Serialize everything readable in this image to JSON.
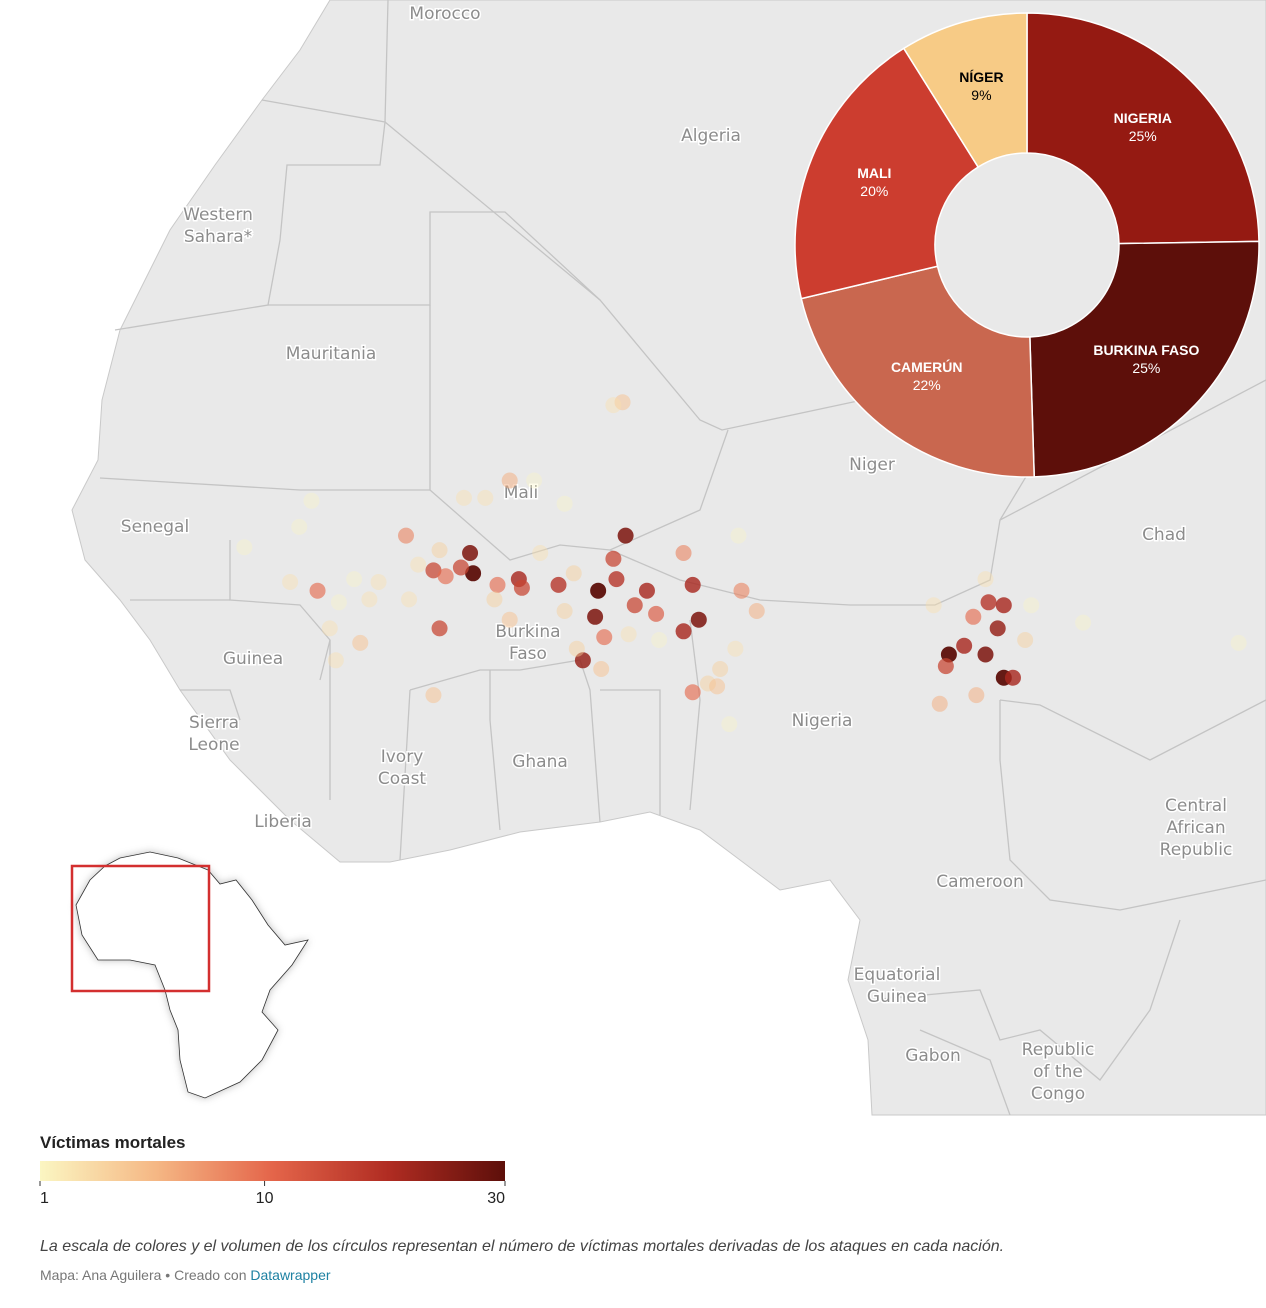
{
  "map": {
    "labels": [
      [
        "Morocco"
      ],
      [
        "Algeria"
      ],
      [
        "Western",
        "Sahara*"
      ],
      [
        "Mauritania"
      ],
      [
        "Mali"
      ],
      [
        "Niger"
      ],
      [
        "Senegal"
      ],
      [
        "Chad"
      ],
      [
        "Guinea"
      ],
      [
        "Burkina",
        "Faso"
      ],
      [
        "Sierra",
        "Leone"
      ],
      [
        "Ivory",
        "Coast"
      ],
      [
        "Ghana"
      ],
      [
        "Nigeria"
      ],
      [
        "Liberia"
      ],
      [
        "Central",
        "African",
        "Republic"
      ],
      [
        "Cameroon"
      ],
      [
        "Equatorial",
        "Guinea"
      ],
      [
        "Gabon"
      ],
      [
        "Republic",
        "of the",
        "Congo"
      ]
    ],
    "points": [
      {
        "lon": -8.4,
        "lat": 14.0,
        "value": 10
      },
      {
        "lon": -5.5,
        "lat": 15.9,
        "value": 8
      },
      {
        "lon": -4.6,
        "lat": 14.7,
        "value": 15
      },
      {
        "lon": -4.2,
        "lat": 14.5,
        "value": 10
      },
      {
        "lon": -3.4,
        "lat": 15.3,
        "value": 25
      },
      {
        "lon": -3.3,
        "lat": 14.6,
        "value": 30
      },
      {
        "lon": -3.7,
        "lat": 14.8,
        "value": 15
      },
      {
        "lon": -4.4,
        "lat": 12.7,
        "value": 15
      },
      {
        "lon": -1.8,
        "lat": 14.4,
        "value": 20
      },
      {
        "lon": -1.7,
        "lat": 14.1,
        "value": 15
      },
      {
        "lon": -2.5,
        "lat": 14.2,
        "value": 10
      },
      {
        "lon": -0.5,
        "lat": 14.2,
        "value": 18
      },
      {
        "lon": 0.8,
        "lat": 14.0,
        "value": 30
      },
      {
        "lon": 0.7,
        "lat": 13.1,
        "value": 25
      },
      {
        "lon": 1.4,
        "lat": 14.4,
        "value": 18
      },
      {
        "lon": 1.3,
        "lat": 15.1,
        "value": 15
      },
      {
        "lon": 1.7,
        "lat": 15.9,
        "value": 25
      },
      {
        "lon": 2.4,
        "lat": 14.0,
        "value": 20
      },
      {
        "lon": 2.0,
        "lat": 13.5,
        "value": 15
      },
      {
        "lon": 2.7,
        "lat": 13.2,
        "value": 12
      },
      {
        "lon": 3.9,
        "lat": 14.2,
        "value": 20
      },
      {
        "lon": 3.6,
        "lat": 12.6,
        "value": 20
      },
      {
        "lon": 4.1,
        "lat": 13.0,
        "value": 25
      },
      {
        "lon": 3.6,
        "lat": 15.3,
        "value": 8
      },
      {
        "lon": 0.3,
        "lat": 11.6,
        "value": 22
      },
      {
        "lon": 1.0,
        "lat": 12.4,
        "value": 10
      },
      {
        "lon": 3.9,
        "lat": 10.5,
        "value": 10
      },
      {
        "lon": 5.5,
        "lat": 14.0,
        "value": 8
      },
      {
        "lon": 6.0,
        "lat": 13.3,
        "value": 5
      },
      {
        "lon": 1.6,
        "lat": 20.5,
        "value": 4
      },
      {
        "lon": 1.3,
        "lat": 20.4,
        "value": 2
      },
      {
        "lon": -2.1,
        "lat": 17.8,
        "value": 5
      },
      {
        "lon": -4.6,
        "lat": 10.4,
        "value": 4
      },
      {
        "lon": -7.0,
        "lat": 12.2,
        "value": 4
      },
      {
        "lon": 12.3,
        "lat": 11.8,
        "value": 30
      },
      {
        "lon": 13.6,
        "lat": 13.6,
        "value": 18
      },
      {
        "lon": 14.1,
        "lat": 13.5,
        "value": 20
      },
      {
        "lon": 13.9,
        "lat": 12.7,
        "value": 22
      },
      {
        "lon": 13.5,
        "lat": 11.8,
        "value": 25
      },
      {
        "lon": 14.1,
        "lat": 11.0,
        "value": 30
      },
      {
        "lon": 14.4,
        "lat": 11.0,
        "value": 20
      },
      {
        "lon": 12.8,
        "lat": 12.1,
        "value": 20
      },
      {
        "lon": 12.2,
        "lat": 11.4,
        "value": 15
      },
      {
        "lon": 13.1,
        "lat": 13.1,
        "value": 10
      },
      {
        "lon": 12.0,
        "lat": 10.1,
        "value": 5
      },
      {
        "lon": 13.5,
        "lat": 14.4,
        "value": 2
      },
      {
        "lon": 16.7,
        "lat": 12.9,
        "value": 1
      },
      {
        "lon": 21.8,
        "lat": 12.2,
        "value": 1
      },
      {
        "lon": 5.1,
        "lat": 9.4,
        "value": 1
      },
      {
        "lon": 4.4,
        "lat": 10.8,
        "value": 3
      },
      {
        "lon": 4.7,
        "lat": 10.7,
        "value": 4
      },
      {
        "lon": -9.0,
        "lat": 16.2,
        "value": 1
      },
      {
        "lon": -8.6,
        "lat": 17.1,
        "value": 1
      },
      {
        "lon": -10.8,
        "lat": 15.5,
        "value": 1
      },
      {
        "lon": -7.7,
        "lat": 13.6,
        "value": 1
      },
      {
        "lon": -6.7,
        "lat": 13.7,
        "value": 2
      },
      {
        "lon": -6.4,
        "lat": 14.3,
        "value": 2
      },
      {
        "lon": -5.1,
        "lat": 14.9,
        "value": 2
      },
      {
        "lon": -7.8,
        "lat": 11.6,
        "value": 2
      },
      {
        "lon": -8.0,
        "lat": 12.7,
        "value": 2
      },
      {
        "lon": -7.2,
        "lat": 14.4,
        "value": 1
      },
      {
        "lon": -3.6,
        "lat": 17.2,
        "value": 2
      },
      {
        "lon": -2.9,
        "lat": 17.2,
        "value": 2
      },
      {
        "lon": -1.3,
        "lat": 17.8,
        "value": 1
      },
      {
        "lon": -0.3,
        "lat": 17.0,
        "value": 1
      },
      {
        "lon": -1.1,
        "lat": 15.3,
        "value": 2
      },
      {
        "lon": 0.0,
        "lat": 14.6,
        "value": 3
      },
      {
        "lon": -0.3,
        "lat": 13.3,
        "value": 3
      },
      {
        "lon": 0.1,
        "lat": 12.0,
        "value": 3
      },
      {
        "lon": 1.8,
        "lat": 12.5,
        "value": 2
      },
      {
        "lon": 2.8,
        "lat": 12.3,
        "value": 1
      },
      {
        "lon": 5.4,
        "lat": 15.9,
        "value": 1
      },
      {
        "lon": 5.3,
        "lat": 12.0,
        "value": 2
      },
      {
        "lon": 4.8,
        "lat": 11.3,
        "value": 3
      },
      {
        "lon": 11.8,
        "lat": 13.5,
        "value": 2
      },
      {
        "lon": 15.0,
        "lat": 13.5,
        "value": 1
      },
      {
        "lon": 14.8,
        "lat": 12.3,
        "value": 3
      },
      {
        "lon": 13.2,
        "lat": 10.4,
        "value": 5
      },
      {
        "lon": -2.1,
        "lat": 13.0,
        "value": 4
      },
      {
        "lon": -2.6,
        "lat": 13.7,
        "value": 3
      },
      {
        "lon": -4.4,
        "lat": 15.4,
        "value": 3
      },
      {
        "lon": -5.4,
        "lat": 13.7,
        "value": 2
      },
      {
        "lon": 0.9,
        "lat": 11.3,
        "value": 4
      },
      {
        "lon": -9.3,
        "lat": 14.3,
        "value": 2
      }
    ]
  },
  "chart_data": {
    "type": "pie",
    "categories": [
      "NIGERIA",
      "BURKINA FASO",
      "CAMERÚN",
      "MALI",
      "NÍGER"
    ],
    "values": [
      25,
      25,
      22,
      20,
      9
    ],
    "value_labels": [
      "25%",
      "25%",
      "22%",
      "20%",
      "9%"
    ],
    "colors": [
      "#951a12",
      "#5d0f0a",
      "#c9674f",
      "#cc3d2f",
      "#f7cb86"
    ],
    "label_colors": [
      "#ffffff",
      "#ffffff",
      "#ffffff",
      "#ffffff",
      "#000000"
    ]
  },
  "legend": {
    "title": "Víctimas mortales",
    "scale": "sqrt",
    "lim": [
      1,
      30
    ],
    "ticks": [
      1,
      10,
      30
    ],
    "colors": [
      "#fbf6c2",
      "#f5b784",
      "#e4654a",
      "#b02c22",
      "#5d0f0a"
    ]
  },
  "footer": {
    "note": "La escala de colores y el volumen de los círculos representan el número de víctimas mortales derivadas de los ataques en cada nación.",
    "credit": "Mapa: Ana Aguilera • Creado con",
    "link": "Datawrapper"
  }
}
